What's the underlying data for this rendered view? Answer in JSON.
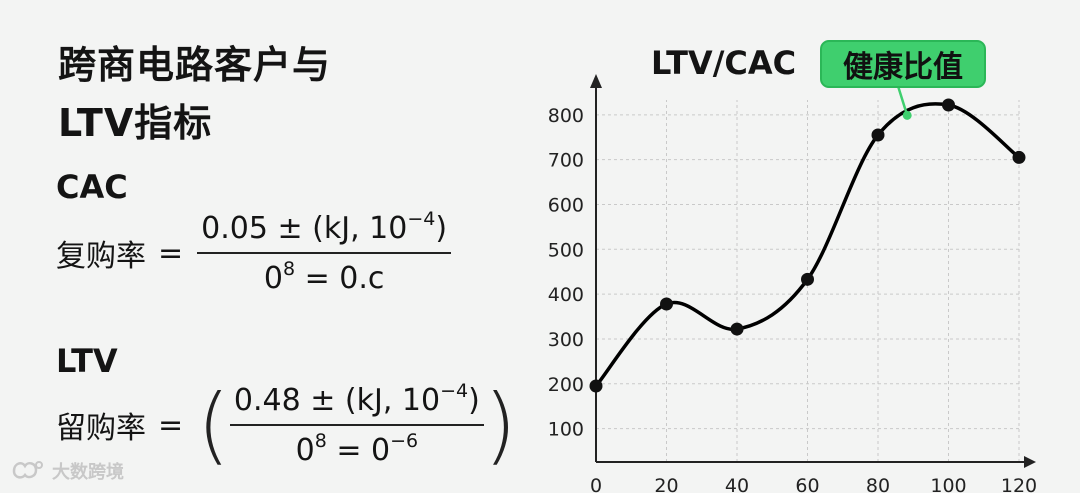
{
  "title_line1": "跨商电路客户与",
  "title_line2": "LTV指标",
  "cac_label": "CAC",
  "ltv_label": "LTV",
  "formula1": {
    "lhs": "复购率",
    "eq": "=",
    "numerator": "0.05 ± (kJ, 10",
    "numerator_exp": "−4",
    "numerator_tail": ")",
    "den_base": "0",
    "den_exp": "8",
    "den_tail": " = 0.c"
  },
  "formula2": {
    "lhs": "留购率",
    "eq": "=",
    "numerator": "0.48 ± (kJ, 10",
    "numerator_exp": "−4",
    "numerator_tail": ")",
    "den_base": "0",
    "den_exp": "8",
    "den_tail1": " = 0",
    "den_exp2": "−6"
  },
  "watermark": "大数跨境",
  "badge": "健康比值",
  "colors": {
    "badge": "#3fcf6e",
    "line": "#000000",
    "grid": "#c9c9c9"
  },
  "chart_data": {
    "type": "line",
    "title": "LTV/CAC",
    "x": [
      0,
      20,
      40,
      60,
      80,
      100,
      120
    ],
    "y": [
      195,
      378,
      322,
      433,
      755,
      822,
      705
    ],
    "xlim": [
      0,
      120
    ],
    "ylim": [
      0,
      850
    ],
    "xticks": [
      0,
      20,
      40,
      60,
      80,
      100,
      120
    ],
    "yticks": [
      100,
      200,
      300,
      400,
      500,
      600,
      700,
      800
    ],
    "grid": "dashed",
    "smooth": true,
    "annotation": {
      "text": "健康比值",
      "x": 88,
      "y": 810
    }
  }
}
